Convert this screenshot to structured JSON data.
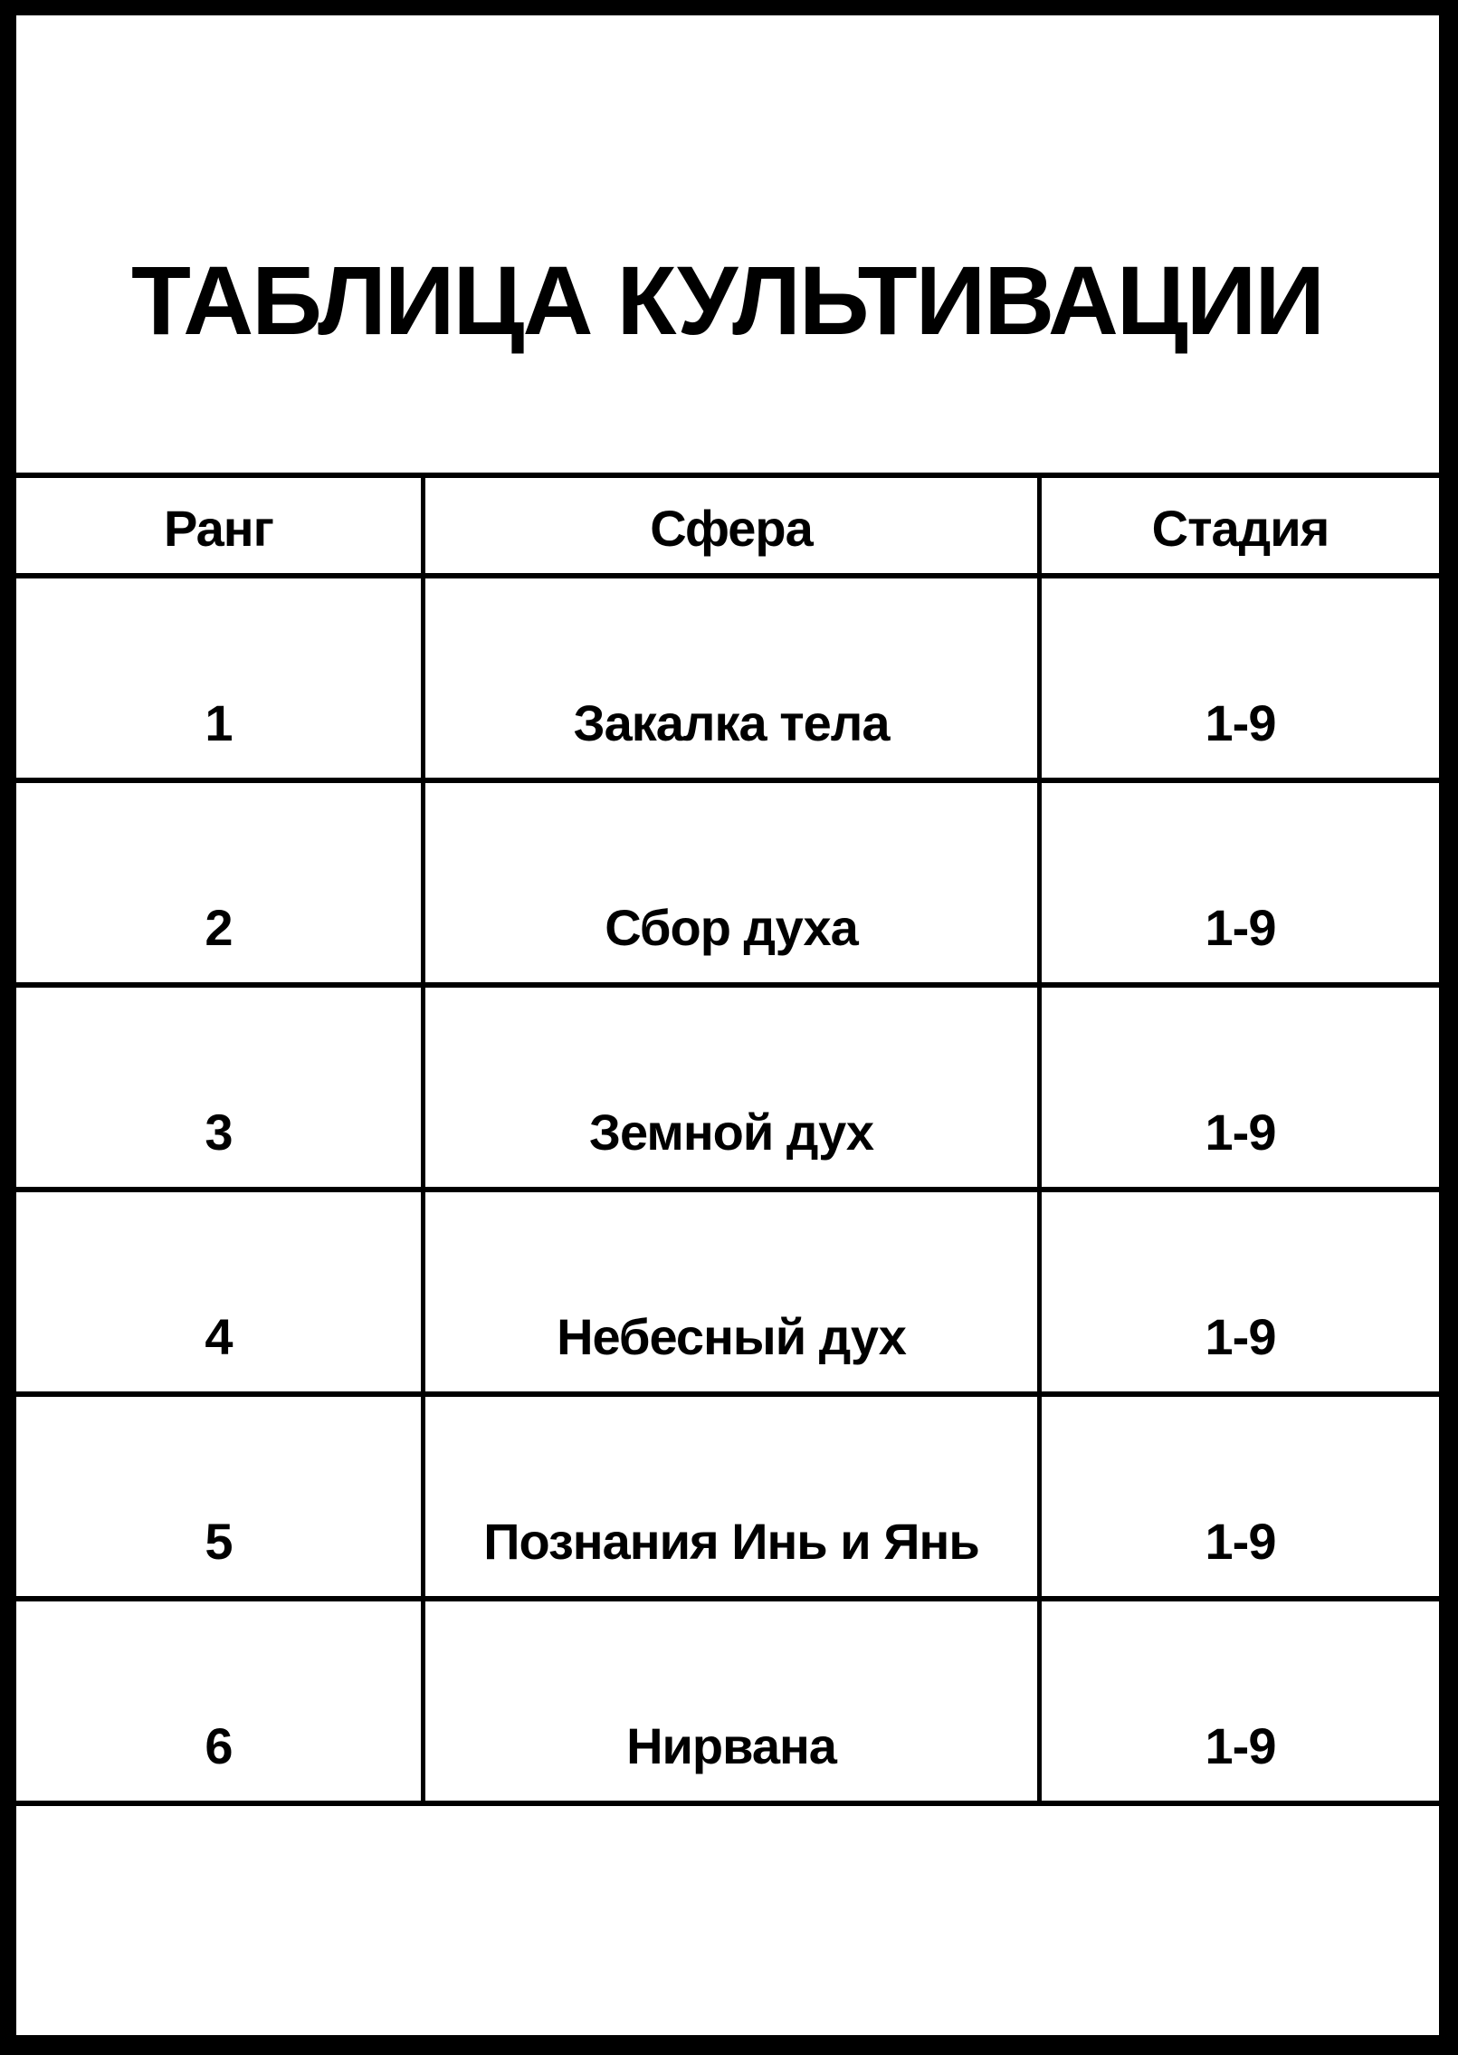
{
  "title": "ТАБЛИЦА КУЛЬТИВАЦИИ",
  "table": {
    "headers": [
      "Ранг",
      "Сфера",
      "Стадия"
    ],
    "rows": [
      [
        "1",
        "Закалка тела",
        "1-9"
      ],
      [
        "2",
        "Сбор духа",
        "1-9"
      ],
      [
        "3",
        "Земной дух",
        "1-9"
      ],
      [
        "4",
        "Небесный дух",
        "1-9"
      ],
      [
        "5",
        "Познания Инь и Янь",
        "1-9"
      ],
      [
        "6",
        "Нирвана",
        "1-9"
      ]
    ]
  },
  "colors": {
    "border": "#000000",
    "background": "#ffffff",
    "text": "#000000"
  }
}
